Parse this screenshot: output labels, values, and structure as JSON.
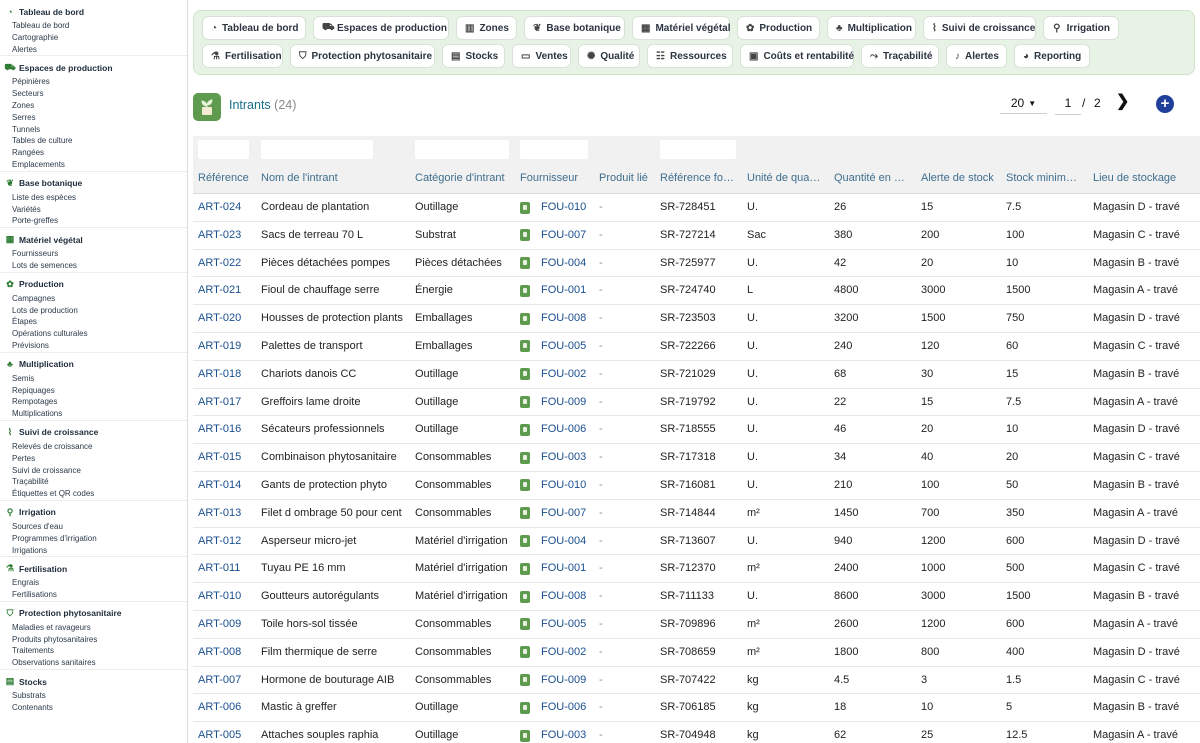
{
  "sidebar": {
    "sections": [
      {
        "title": "Tableau de bord",
        "icon": "gauge-icon",
        "items": [
          "Tableau de bord",
          "Cartographie",
          "Alertes"
        ]
      },
      {
        "title": "Espaces de production",
        "icon": "tractor-icon",
        "items": [
          "Pépinières",
          "Secteurs",
          "Zones",
          "Serres",
          "Tunnels",
          "Tables de culture",
          "Rangées",
          "Emplacements"
        ]
      },
      {
        "title": "Base botanique",
        "icon": "leaf-icon",
        "items": [
          "Liste des espèces",
          "Variétés",
          "Porte-greffes"
        ]
      },
      {
        "title": "Matériel végétal",
        "icon": "box-icon",
        "items": [
          "Fournisseurs",
          "Lots de semences"
        ]
      },
      {
        "title": "Production",
        "icon": "seedling-icon",
        "items": [
          "Campagnes",
          "Lots de production",
          "Étapes",
          "Opérations culturales",
          "Prévisions"
        ]
      },
      {
        "title": "Multiplication",
        "icon": "plant-icon",
        "items": [
          "Semis",
          "Repiquages",
          "Rempotages",
          "Multiplications"
        ]
      },
      {
        "title": "Suivi de croissance",
        "icon": "chart-line-icon",
        "items": [
          "Relevés de croissance",
          "Pertes",
          "Suivi de croissance",
          "Traçabilité",
          "Étiquettes et QR codes"
        ]
      },
      {
        "title": "Irrigation",
        "icon": "faucet-icon",
        "items": [
          "Sources d'eau",
          "Programmes d'irrigation",
          "Irrigations"
        ]
      },
      {
        "title": "Fertilisation",
        "icon": "flask-icon",
        "items": [
          "Engrais",
          "Fertilisations"
        ]
      },
      {
        "title": "Protection phytosanitaire",
        "icon": "shield-icon",
        "items": [
          "Maladies et ravageurs",
          "Produits phytosanitaires",
          "Traitements",
          "Observations sanitaires"
        ]
      },
      {
        "title": "Stocks",
        "icon": "boxes-icon",
        "items": [
          "Substrats",
          "Contenants"
        ]
      }
    ]
  },
  "topnav": {
    "row1": [
      {
        "label": "Tableau de bord",
        "icon": "gauge-icon",
        "glyph": "◔"
      },
      {
        "label": "Espaces de production",
        "icon": "tractor-icon",
        "glyph": "⛟"
      },
      {
        "label": "Zones",
        "icon": "map-icon",
        "glyph": "▥"
      },
      {
        "label": "Base botanique",
        "icon": "leaf-icon",
        "glyph": "❦"
      },
      {
        "label": "Matériel végétal",
        "icon": "box-icon",
        "glyph": "▦"
      },
      {
        "label": "Production",
        "icon": "seedling-icon",
        "glyph": "✿"
      },
      {
        "label": "Multiplication",
        "icon": "plant-icon",
        "glyph": "♣"
      },
      {
        "label": "Suivi de croissance",
        "icon": "chart-line-icon",
        "glyph": "⌇"
      },
      {
        "label": "Irrigation",
        "icon": "faucet-icon",
        "glyph": "⚲"
      }
    ],
    "row2": [
      {
        "label": "Fertilisation",
        "icon": "flask-icon",
        "glyph": "⚗"
      },
      {
        "label": "Protection phytosanitaire",
        "icon": "shield-icon",
        "glyph": "⛉"
      },
      {
        "label": "Stocks",
        "icon": "boxes-icon",
        "glyph": "▤"
      },
      {
        "label": "Ventes",
        "icon": "invoice-icon",
        "glyph": "▭"
      },
      {
        "label": "Qualité",
        "icon": "badge-icon",
        "glyph": "✺"
      },
      {
        "label": "Ressources",
        "icon": "users-icon",
        "glyph": "☷"
      },
      {
        "label": "Coûts et rentabilité",
        "icon": "money-icon",
        "glyph": "▣"
      },
      {
        "label": "Traçabilité",
        "icon": "route-icon",
        "glyph": "⤳"
      },
      {
        "label": "Alertes",
        "icon": "bell-icon",
        "glyph": "♪"
      },
      {
        "label": "Reporting",
        "icon": "pie-chart-icon",
        "glyph": "◕"
      }
    ]
  },
  "header": {
    "title": "Intrants",
    "count": "(24)",
    "page_size": "20",
    "page": "1",
    "page_sep": "/",
    "total_pages": "2",
    "add_label": "+"
  },
  "table": {
    "columns": [
      "Référence",
      "Nom de l'intrant",
      "Catégorie d'intrant",
      "Fournisseur",
      "Produit lié",
      "Référence fo…",
      "Unité de qua…",
      "Quantité en …",
      "Alerte de stock",
      "Stock minim…",
      "Lieu de stockage"
    ],
    "rows": [
      [
        "ART-024",
        "Cordeau de plantation",
        "Outillage",
        "FOU-010",
        "-",
        "SR-728451",
        "U.",
        "26",
        "15",
        "7.5",
        "Magasin D - travé"
      ],
      [
        "ART-023",
        "Sacs de terreau 70 L",
        "Substrat",
        "FOU-007",
        "-",
        "SR-727214",
        "Sac",
        "380",
        "200",
        "100",
        "Magasin C - travé"
      ],
      [
        "ART-022",
        "Pièces détachées pompes",
        "Pièces détachées",
        "FOU-004",
        "-",
        "SR-725977",
        "U.",
        "42",
        "20",
        "10",
        "Magasin B - travé"
      ],
      [
        "ART-021",
        "Fioul de chauffage serre",
        "Énergie",
        "FOU-001",
        "-",
        "SR-724740",
        "L",
        "4800",
        "3000",
        "1500",
        "Magasin A - travé"
      ],
      [
        "ART-020",
        "Housses de protection plants",
        "Emballages",
        "FOU-008",
        "-",
        "SR-723503",
        "U.",
        "3200",
        "1500",
        "750",
        "Magasin D - travé"
      ],
      [
        "ART-019",
        "Palettes de transport",
        "Emballages",
        "FOU-005",
        "-",
        "SR-722266",
        "U.",
        "240",
        "120",
        "60",
        "Magasin C - travé"
      ],
      [
        "ART-018",
        "Chariots danois CC",
        "Outillage",
        "FOU-002",
        "-",
        "SR-721029",
        "U.",
        "68",
        "30",
        "15",
        "Magasin B - travé"
      ],
      [
        "ART-017",
        "Greffoirs lame droite",
        "Outillage",
        "FOU-009",
        "-",
        "SR-719792",
        "U.",
        "22",
        "15",
        "7.5",
        "Magasin A - travé"
      ],
      [
        "ART-016",
        "Sécateurs professionnels",
        "Outillage",
        "FOU-006",
        "-",
        "SR-718555",
        "U.",
        "46",
        "20",
        "10",
        "Magasin D - travé"
      ],
      [
        "ART-015",
        "Combinaison phytosanitaire",
        "Consommables",
        "FOU-003",
        "-",
        "SR-717318",
        "U.",
        "34",
        "40",
        "20",
        "Magasin C - travé"
      ],
      [
        "ART-014",
        "Gants de protection phyto",
        "Consommables",
        "FOU-010",
        "-",
        "SR-716081",
        "U.",
        "210",
        "100",
        "50",
        "Magasin B - travé"
      ],
      [
        "ART-013",
        "Filet d ombrage 50 pour cent",
        "Consommables",
        "FOU-007",
        "-",
        "SR-714844",
        "m²",
        "1450",
        "700",
        "350",
        "Magasin A - travé"
      ],
      [
        "ART-012",
        "Asperseur micro-jet",
        "Matériel d'irrigation",
        "FOU-004",
        "-",
        "SR-713607",
        "U.",
        "940",
        "1200",
        "600",
        "Magasin D - travé"
      ],
      [
        "ART-011",
        "Tuyau PE 16 mm",
        "Matériel d'irrigation",
        "FOU-001",
        "-",
        "SR-712370",
        "m²",
        "2400",
        "1000",
        "500",
        "Magasin C - travé"
      ],
      [
        "ART-010",
        "Goutteurs autorégulants",
        "Matériel d'irrigation",
        "FOU-008",
        "-",
        "SR-711133",
        "U.",
        "8600",
        "3000",
        "1500",
        "Magasin B - travé"
      ],
      [
        "ART-009",
        "Toile hors-sol tissée",
        "Consommables",
        "FOU-005",
        "-",
        "SR-709896",
        "m²",
        "2600",
        "1200",
        "600",
        "Magasin A - travé"
      ],
      [
        "ART-008",
        "Film thermique de serre",
        "Consommables",
        "FOU-002",
        "-",
        "SR-708659",
        "m²",
        "1800",
        "800",
        "400",
        "Magasin D - travé"
      ],
      [
        "ART-007",
        "Hormone de bouturage AIB",
        "Consommables",
        "FOU-009",
        "-",
        "SR-707422",
        "kg",
        "4.5",
        "3",
        "1.5",
        "Magasin C - travé"
      ],
      [
        "ART-006",
        "Mastic à greffer",
        "Outillage",
        "FOU-006",
        "-",
        "SR-706185",
        "kg",
        "18",
        "10",
        "5",
        "Magasin B - travé"
      ],
      [
        "ART-005",
        "Attaches souples raphia",
        "Outillage",
        "FOU-003",
        "-",
        "SR-704948",
        "kg",
        "62",
        "25",
        "12.5",
        "Magasin A - travé"
      ]
    ]
  },
  "colors": {
    "accent": "#5f9b4f",
    "nav_bg": "#e7f3e5",
    "link": "#1a4f8f",
    "title": "#1a6f8a",
    "add": "#1f3f9a"
  }
}
